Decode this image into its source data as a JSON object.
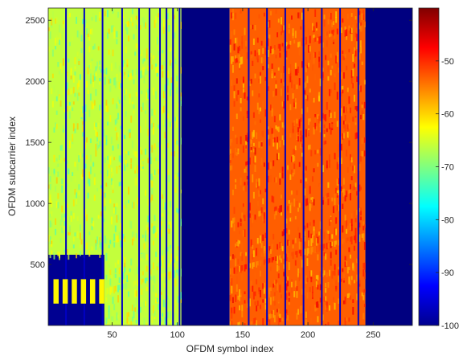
{
  "chart_data": {
    "type": "heatmap",
    "title": "",
    "xlabel": "OFDM symbol index",
    "ylabel": "OFDM subcarrier index",
    "xlim": [
      1,
      280
    ],
    "ylim": [
      1,
      2600
    ],
    "x_ticks": [
      50,
      100,
      150,
      200,
      250
    ],
    "y_ticks": [
      500,
      1000,
      1500,
      2000,
      2500
    ],
    "colorbar": {
      "colormap": "jet",
      "clim": [
        -100,
        -40
      ],
      "ticks": [
        -50,
        -60,
        -70,
        -80,
        -90,
        -100
      ]
    },
    "regions": [
      {
        "name": "active-low",
        "x_range": [
          1,
          103
        ],
        "y_range": [
          1,
          2600
        ],
        "level_dB": -66
      },
      {
        "name": "low-band-block",
        "x_range": [
          1,
          44
        ],
        "y_range": [
          1,
          580
        ],
        "level_dB": -99
      },
      {
        "name": "empty-gap",
        "x_range": [
          103,
          140
        ],
        "y_range": [
          1,
          2600
        ],
        "level_dB": -100
      },
      {
        "name": "active-high",
        "x_range": [
          140,
          244
        ],
        "y_range": [
          1,
          2600
        ],
        "level_dB": -53
      },
      {
        "name": "empty-tail",
        "x_range": [
          244,
          280
        ],
        "y_range": [
          1,
          2600
        ],
        "level_dB": -100
      }
    ],
    "null_symbols": [
      14,
      28,
      42,
      57,
      70,
      78,
      86,
      91,
      96,
      101,
      154,
      168,
      182,
      196,
      210,
      224,
      238
    ],
    "pilot_blocks_low_band": {
      "x": [
        5,
        12,
        19,
        26,
        33,
        40
      ],
      "y_range": [
        180,
        380
      ],
      "level_dB": -62
    }
  }
}
